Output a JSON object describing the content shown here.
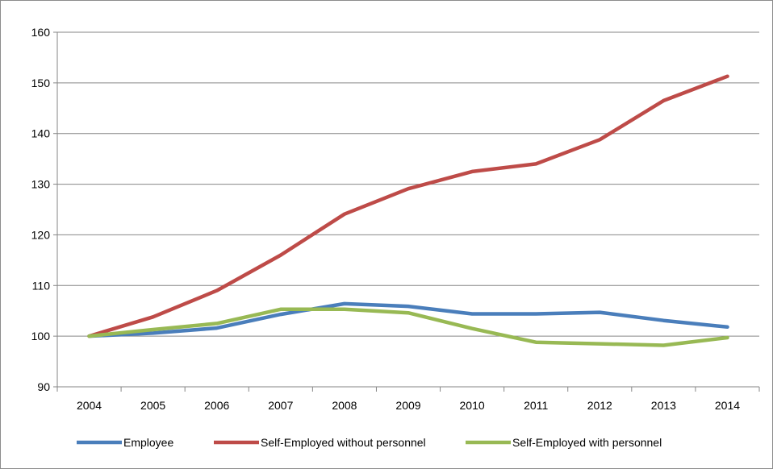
{
  "chart_data": {
    "type": "line",
    "title": "",
    "xlabel": "",
    "ylabel": "",
    "categories": [
      "2004",
      "2005",
      "2006",
      "2007",
      "2008",
      "2009",
      "2010",
      "2011",
      "2012",
      "2013",
      "2014"
    ],
    "yticks": [
      "90",
      "100",
      "110",
      "120",
      "130",
      "140",
      "150",
      "160"
    ],
    "ylim": [
      90,
      160
    ],
    "grid": true,
    "legend_position": "bottom",
    "series": [
      {
        "name": "Employee",
        "color": "#4a7ebb",
        "values": [
          100,
          100.6,
          101.6,
          104.3,
          106.4,
          105.9,
          104.4,
          104.4,
          104.7,
          103.1,
          101.8
        ]
      },
      {
        "name": "Self-Employed without personnel",
        "color": "#be4b48",
        "values": [
          100,
          103.8,
          109.0,
          116.0,
          124.1,
          129.1,
          132.5,
          134.0,
          138.8,
          146.5,
          151.3
        ]
      },
      {
        "name": "Self-Employed with personnel",
        "color": "#98b954",
        "values": [
          100,
          101.3,
          102.5,
          105.3,
          105.3,
          104.6,
          101.5,
          98.8,
          98.5,
          98.2,
          99.7
        ]
      }
    ]
  }
}
